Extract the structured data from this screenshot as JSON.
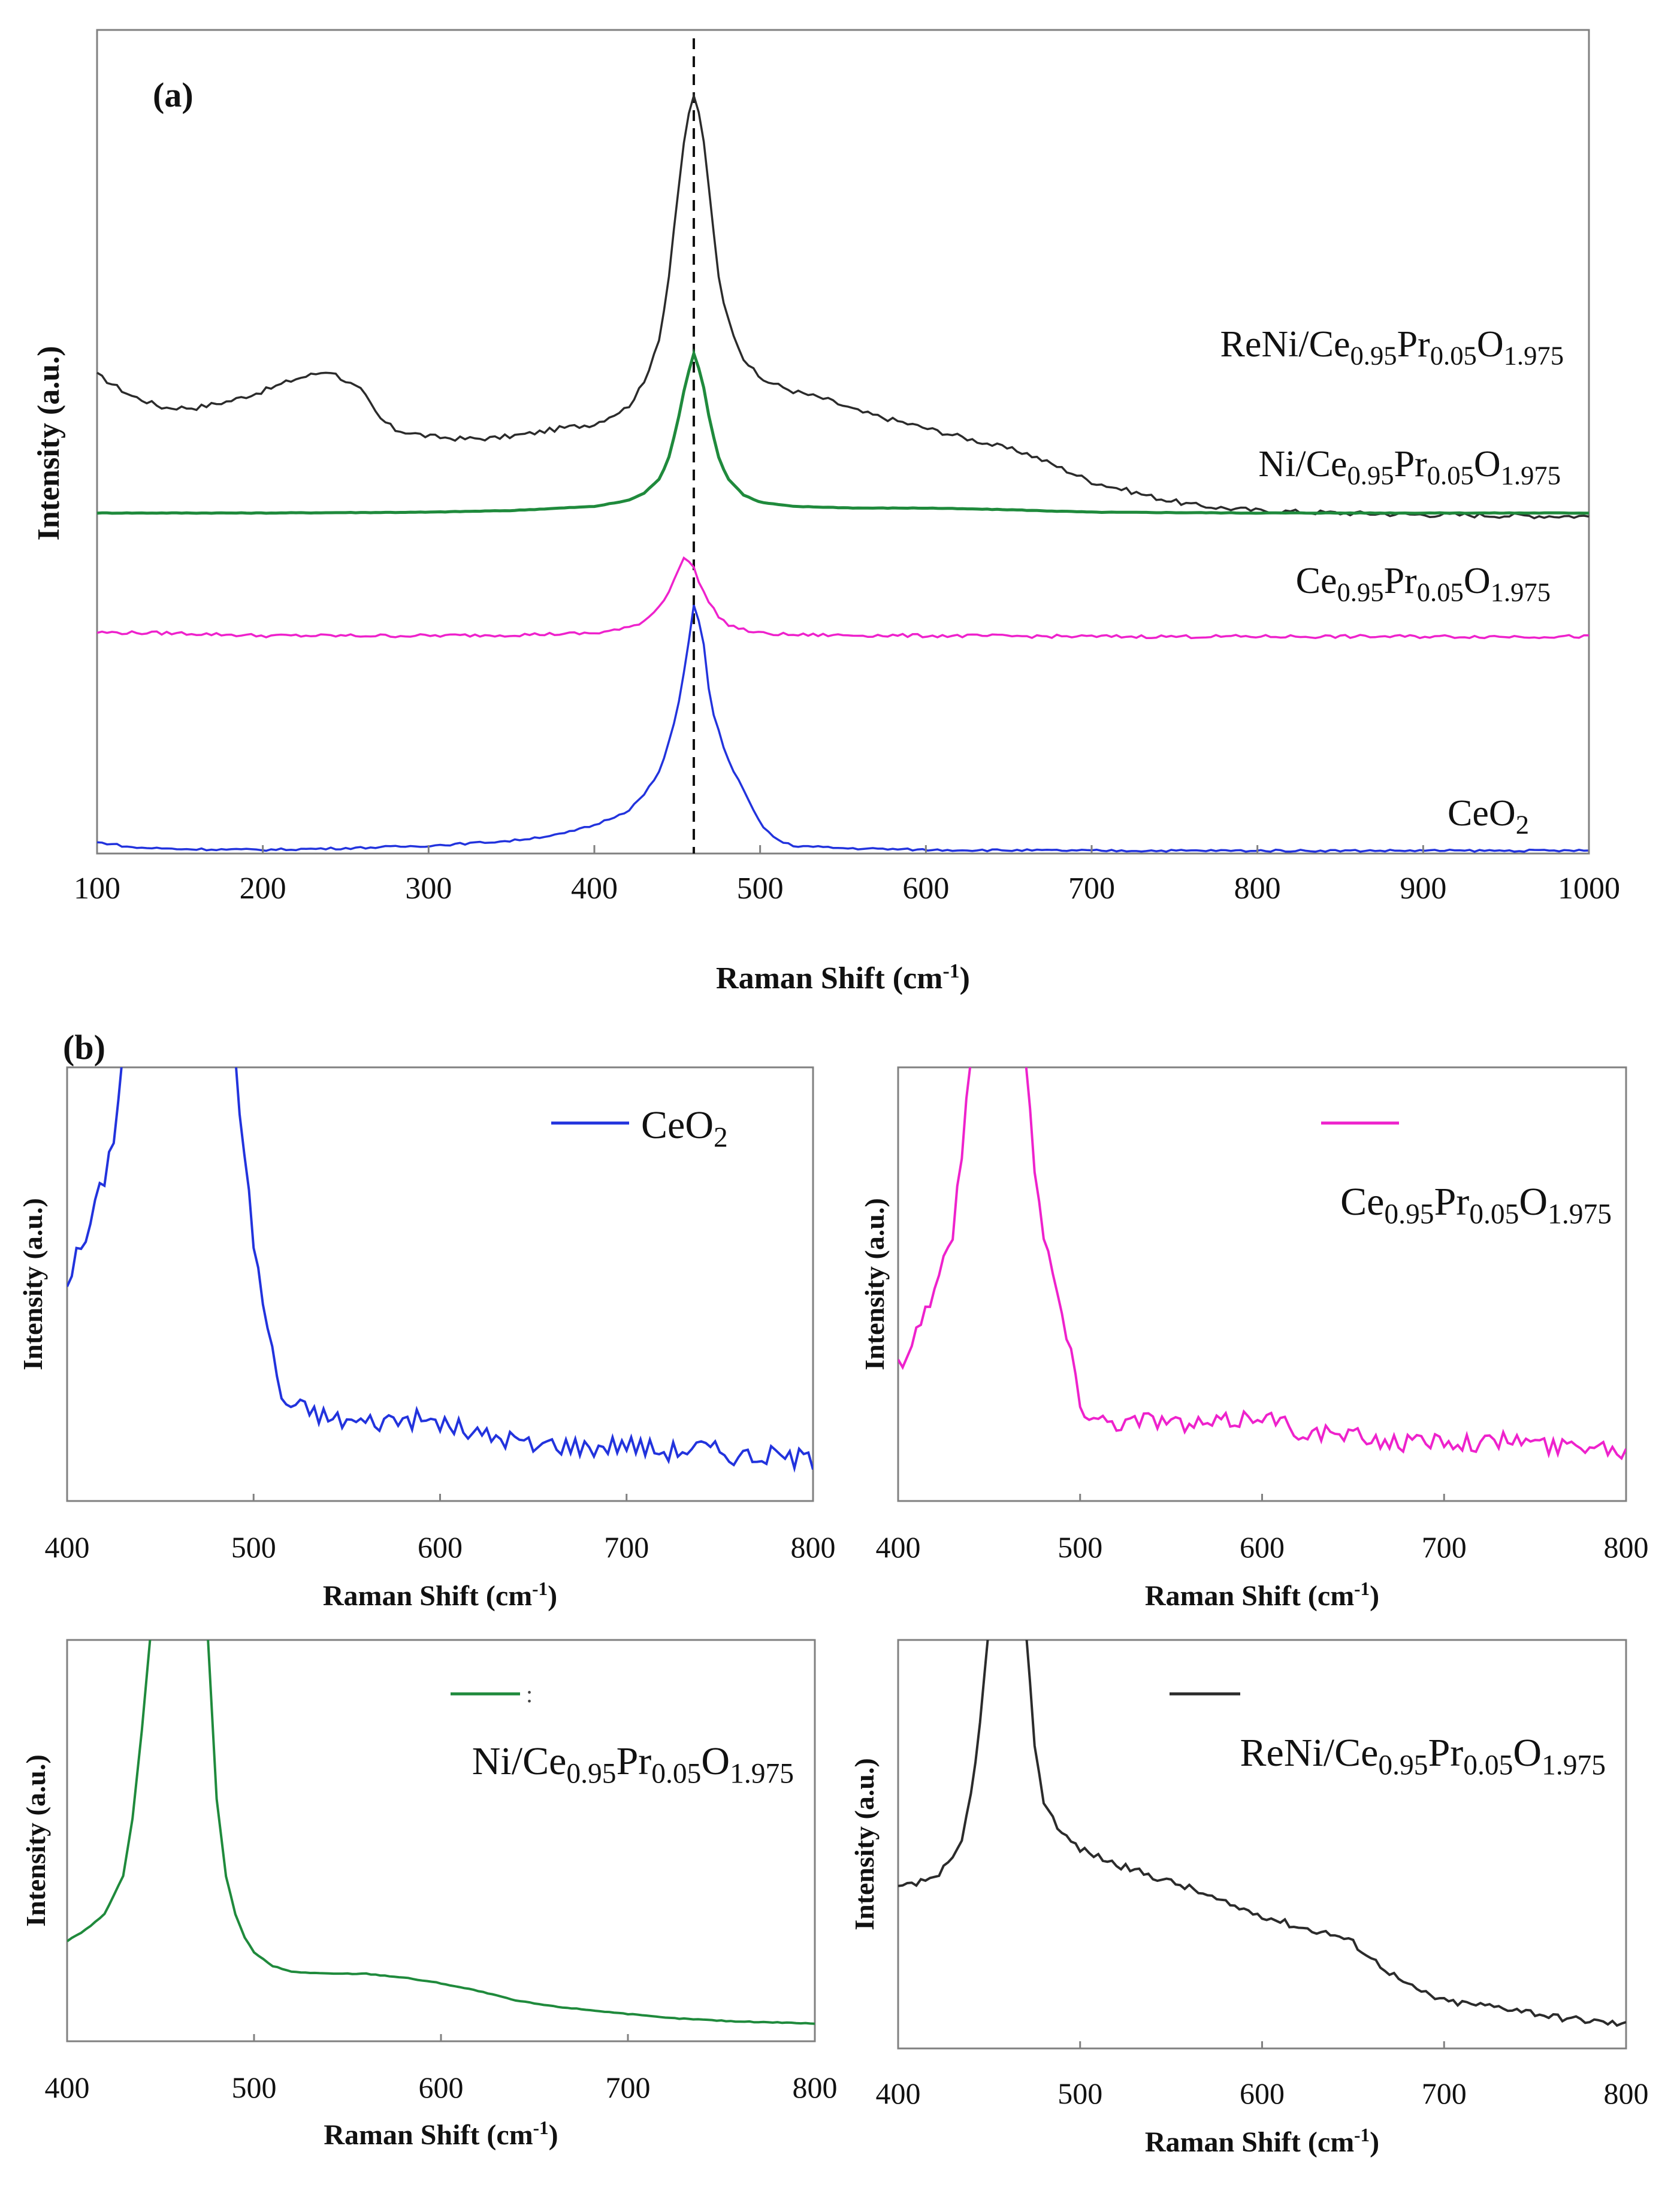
{
  "panel_a": {
    "label": "(a)",
    "chart_data": {
      "type": "line",
      "title": "",
      "xlabel": "Raman Shift (cm-1)",
      "xlabel_parts": [
        "Raman Shift (cm",
        "-1",
        ")"
      ],
      "ylabel": "Intensity (a.u.)",
      "xlim": [
        100,
        1000
      ],
      "xticks": [
        100,
        200,
        300,
        400,
        500,
        600,
        700,
        800,
        900,
        1000
      ],
      "yticks": [],
      "reference_line_x": 460,
      "series": [
        {
          "name": "ReNi/Ce0.95Pr0.05O1.975",
          "color": "#2b2b2b",
          "label_parts": [
            {
              "t": "ReNi/Ce",
              "sub": false
            },
            {
              "t": "0.95",
              "sub": true
            },
            {
              "t": "Pr",
              "sub": false
            },
            {
              "t": "0.05",
              "sub": true
            },
            {
              "t": "O",
              "sub": false
            },
            {
              "t": "1.975",
              "sub": true
            }
          ],
          "x": [
            100,
            120,
            140,
            160,
            180,
            200,
            220,
            240,
            260,
            270,
            280,
            300,
            320,
            340,
            360,
            380,
            400,
            420,
            430,
            440,
            445,
            450,
            455,
            460,
            465,
            470,
            475,
            480,
            490,
            500,
            520,
            540,
            560,
            580,
            600,
            620,
            640,
            660,
            680,
            700,
            720,
            740,
            760,
            780,
            800,
            850,
            900,
            950,
            1000
          ],
          "y": [
            0.58,
            0.555,
            0.54,
            0.54,
            0.548,
            0.56,
            0.575,
            0.585,
            0.56,
            0.528,
            0.513,
            0.505,
            0.502,
            0.503,
            0.508,
            0.515,
            0.52,
            0.54,
            0.57,
            0.63,
            0.7,
            0.79,
            0.88,
            0.92,
            0.88,
            0.79,
            0.7,
            0.65,
            0.6,
            0.575,
            0.56,
            0.55,
            0.535,
            0.525,
            0.515,
            0.505,
            0.495,
            0.485,
            0.468,
            0.45,
            0.44,
            0.43,
            0.422,
            0.418,
            0.415,
            0.412,
            0.41,
            0.409,
            0.408
          ]
        },
        {
          "name": "Ni/Ce0.95Pr0.05O1.975",
          "color": "#1f8a3c",
          "label_parts": [
            {
              "t": "Ni/Ce",
              "sub": false
            },
            {
              "t": "0.95",
              "sub": true
            },
            {
              "t": "Pr",
              "sub": false
            },
            {
              "t": "0.05",
              "sub": true
            },
            {
              "t": "O",
              "sub": false
            },
            {
              "t": "1.975",
              "sub": true
            }
          ],
          "x": [
            100,
            200,
            300,
            350,
            400,
            420,
            430,
            440,
            445,
            450,
            455,
            460,
            465,
            470,
            475,
            480,
            490,
            500,
            520,
            560,
            600,
            650,
            700,
            800,
            900,
            1000
          ],
          "y": [
            0.412,
            0.412,
            0.413,
            0.415,
            0.42,
            0.427,
            0.436,
            0.455,
            0.48,
            0.52,
            0.57,
            0.606,
            0.575,
            0.52,
            0.48,
            0.455,
            0.434,
            0.425,
            0.42,
            0.418,
            0.418,
            0.416,
            0.413,
            0.412,
            0.412,
            0.412
          ]
        },
        {
          "name": "Ce0.95Pr0.05O1.975",
          "color": "#ee22cc",
          "label_parts": [
            {
              "t": "Ce",
              "sub": false
            },
            {
              "t": "0.95",
              "sub": true
            },
            {
              "t": "Pr",
              "sub": false
            },
            {
              "t": "0.05",
              "sub": true
            },
            {
              "t": "O",
              "sub": false
            },
            {
              "t": "1.975",
              "sub": true
            }
          ],
          "x": [
            100,
            150,
            200,
            300,
            350,
            400,
            420,
            430,
            440,
            445,
            450,
            455,
            460,
            465,
            470,
            475,
            480,
            490,
            500,
            520,
            600,
            700,
            800,
            900,
            1000
          ],
          "y": [
            0.267,
            0.266,
            0.263,
            0.263,
            0.264,
            0.266,
            0.272,
            0.281,
            0.3,
            0.318,
            0.34,
            0.36,
            0.345,
            0.32,
            0.3,
            0.287,
            0.277,
            0.27,
            0.266,
            0.264,
            0.263,
            0.262,
            0.262,
            0.262,
            0.262
          ]
        },
        {
          "name": "CeO2",
          "color": "#2233dd",
          "label_parts": [
            {
              "t": "CeO",
              "sub": false
            },
            {
              "t": "2",
              "sub": true
            }
          ],
          "x": [
            100,
            110,
            120,
            150,
            200,
            250,
            300,
            350,
            380,
            400,
            420,
            430,
            440,
            450,
            455,
            460,
            465,
            470,
            480,
            490,
            500,
            510,
            520,
            550,
            600,
            700,
            800,
            900,
            1000
          ],
          "y": [
            0.012,
            0.01,
            0.006,
            0.004,
            0.003,
            0.005,
            0.008,
            0.014,
            0.022,
            0.033,
            0.05,
            0.07,
            0.1,
            0.17,
            0.23,
            0.3,
            0.27,
            0.18,
            0.115,
            0.075,
            0.035,
            0.015,
            0.008,
            0.005,
            0.003,
            0.002,
            0.002,
            0.002,
            0.002
          ]
        }
      ]
    }
  },
  "panel_b": {
    "label": "(b)",
    "chart_data": [
      {
        "type": "line",
        "name": "CeO2",
        "color": "#2233dd",
        "legend_parts": [
          {
            "t": "CeO",
            "sub": false
          },
          {
            "t": "2",
            "sub": true
          }
        ],
        "xlabel": "Raman Shift (cm-1)",
        "xlabel_parts": [
          "Raman Shift (cm",
          "-1",
          ")"
        ],
        "ylabel": "Intensity (a.u.)",
        "xlim": [
          400,
          800
        ],
        "ylim": [
          0,
          1
        ],
        "xticks": [
          400,
          500,
          600,
          700,
          800
        ],
        "x": [
          400,
          405,
          410,
          415,
          420,
          425,
          430,
          490,
          495,
          500,
          505,
          510,
          515,
          520,
          530,
          540,
          560,
          580,
          600,
          620,
          640,
          650,
          660,
          680,
          700,
          720,
          740,
          760,
          780,
          800
        ],
        "y": [
          0.5,
          0.56,
          0.6,
          0.68,
          0.75,
          0.85,
          1.05,
          1.05,
          0.8,
          0.6,
          0.45,
          0.33,
          0.22,
          0.2,
          0.19,
          0.17,
          0.16,
          0.17,
          0.16,
          0.13,
          0.12,
          0.1,
          0.11,
          0.1,
          0.11,
          0.09,
          0.1,
          0.08,
          0.08,
          0.07
        ]
      },
      {
        "type": "line",
        "name": "Ce0.95Pr0.05O1.975",
        "color": "#ee22cc",
        "legend_parts": [
          {
            "t": "Ce",
            "sub": false
          },
          {
            "t": "0.95",
            "sub": true
          },
          {
            "t": "Pr",
            "sub": false
          },
          {
            "t": "0.05",
            "sub": true
          },
          {
            "t": "O",
            "sub": false
          },
          {
            "t": "1.975",
            "sub": true
          }
        ],
        "xlabel": "Raman Shift (cm-1)",
        "xlabel_parts": [
          "Raman Shift (cm",
          "-1",
          ")"
        ],
        "ylabel": "Intensity (a.u.)",
        "xlim": [
          400,
          800
        ],
        "ylim": [
          0,
          1
        ],
        "xticks": [
          400,
          500,
          600,
          700,
          800
        ],
        "x": [
          400,
          405,
          410,
          420,
          425,
          430,
          435,
          440,
          470,
          475,
          480,
          485,
          490,
          495,
          500,
          510,
          520,
          540,
          560,
          580,
          600,
          620,
          640,
          660,
          680,
          700,
          720,
          740,
          760,
          780,
          800
        ],
        "y": [
          0.3,
          0.33,
          0.38,
          0.48,
          0.55,
          0.62,
          0.8,
          1.05,
          1.05,
          0.78,
          0.6,
          0.52,
          0.42,
          0.32,
          0.2,
          0.17,
          0.16,
          0.17,
          0.15,
          0.16,
          0.18,
          0.14,
          0.13,
          0.12,
          0.11,
          0.12,
          0.11,
          0.12,
          0.1,
          0.11,
          0.09
        ]
      },
      {
        "type": "line",
        "name": "Ni/Ce0.95Pr0.05O1.975",
        "color": "#1f8a3c",
        "legend_parts": [
          {
            "t": "Ni/Ce",
            "sub": false
          },
          {
            "t": "0.95",
            "sub": true
          },
          {
            "t": "Pr",
            "sub": false
          },
          {
            "t": "0.05",
            "sub": true
          },
          {
            "t": "O",
            "sub": false
          },
          {
            "t": "1.975",
            "sub": true
          }
        ],
        "xlabel": "Raman Shift (cm-1)",
        "xlabel_parts": [
          "Raman Shift (cm",
          "-1",
          ")"
        ],
        "ylabel": "Intensity (a.u.)",
        "xlim": [
          400,
          800
        ],
        "ylim": [
          0,
          1
        ],
        "xticks": [
          400,
          500,
          600,
          700,
          800
        ],
        "x": [
          400,
          410,
          420,
          430,
          435,
          440,
          445,
          475,
          480,
          485,
          490,
          495,
          500,
          510,
          520,
          540,
          560,
          580,
          600,
          620,
          640,
          660,
          680,
          700,
          720,
          740,
          760,
          780,
          800
        ],
        "y": [
          0.23,
          0.26,
          0.3,
          0.4,
          0.55,
          0.78,
          1.05,
          1.05,
          0.6,
          0.4,
          0.3,
          0.24,
          0.2,
          0.165,
          0.15,
          0.145,
          0.145,
          0.135,
          0.12,
          0.1,
          0.075,
          0.06,
          0.05,
          0.04,
          0.03,
          0.025,
          0.02,
          0.018,
          0.015
        ]
      },
      {
        "type": "line",
        "name": "ReNi/Ce0.95Pr0.05O1.975",
        "color": "#2b2b2b",
        "legend_parts": [
          {
            "t": "ReNi/Ce",
            "sub": false
          },
          {
            "t": "0.95",
            "sub": true
          },
          {
            "t": "Pr",
            "sub": false
          },
          {
            "t": "0.05",
            "sub": true
          },
          {
            "t": "O",
            "sub": false
          },
          {
            "t": "1.975",
            "sub": true
          }
        ],
        "xlabel": "Raman Shift (cm-1)",
        "xlabel_parts": [
          "Raman Shift (cm",
          "-1",
          ")"
        ],
        "ylabel": "Intensity (a.u.)",
        "xlim": [
          400,
          800
        ],
        "ylim": [
          0,
          1
        ],
        "xticks": [
          400,
          500,
          600,
          700,
          800
        ],
        "x": [
          400,
          410,
          420,
          430,
          435,
          440,
          445,
          450,
          470,
          475,
          480,
          485,
          490,
          500,
          520,
          540,
          560,
          580,
          600,
          620,
          640,
          650,
          660,
          680,
          700,
          720,
          740,
          760,
          780,
          800
        ],
        "y": [
          0.38,
          0.39,
          0.41,
          0.45,
          0.5,
          0.62,
          0.8,
          1.05,
          1.05,
          0.75,
          0.6,
          0.56,
          0.52,
          0.48,
          0.44,
          0.41,
          0.38,
          0.34,
          0.31,
          0.28,
          0.26,
          0.24,
          0.2,
          0.13,
          0.09,
          0.08,
          0.07,
          0.05,
          0.04,
          0.03
        ]
      }
    ]
  }
}
